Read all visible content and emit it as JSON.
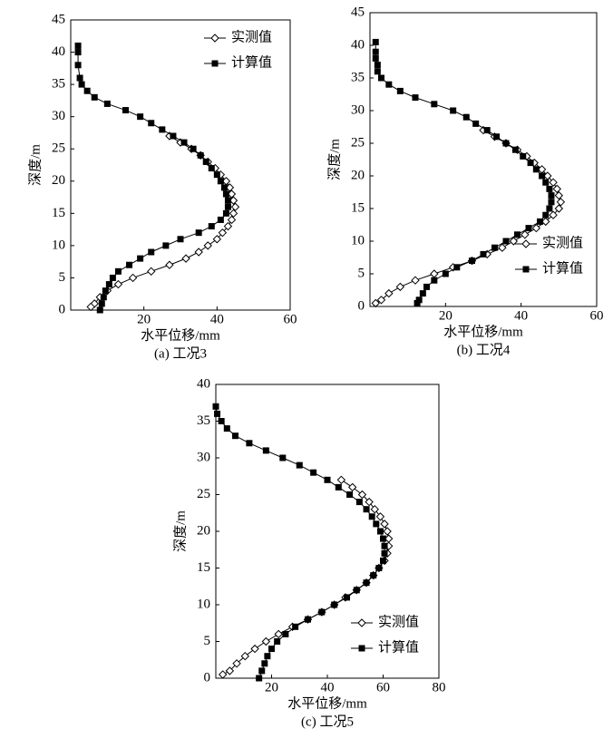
{
  "chart_data": [
    {
      "type": "line",
      "caption": "(a) 工况3",
      "x_label": "水平位移/mm",
      "y_label": "深度/m",
      "xlim": [
        0,
        60
      ],
      "ylim": [
        0,
        45
      ],
      "xticks": [
        20,
        40,
        60
      ],
      "yticks": [
        0,
        5,
        10,
        15,
        20,
        25,
        30,
        35,
        40,
        45
      ],
      "legend": "upper right",
      "series": [
        {
          "name": "实测值",
          "color": "#000000",
          "marker": "diamond-open",
          "x": [
            27,
            30,
            33,
            35.5,
            37.5,
            39.5,
            41,
            42.5,
            43.5,
            44,
            44.5,
            45,
            44.5,
            44,
            43,
            41.5,
            40,
            37.5,
            35,
            31.5,
            27,
            22,
            17,
            13,
            10,
            8,
            6.5,
            5.5
          ],
          "y": [
            27,
            26,
            25,
            24,
            23,
            22,
            21,
            20,
            19,
            18,
            17,
            16,
            15,
            14,
            13,
            12,
            11,
            10,
            9,
            8,
            7,
            6,
            5,
            4,
            3,
            2,
            1,
            0.5
          ]
        },
        {
          "name": "计算值",
          "color": "#000000",
          "marker": "square",
          "x": [
            2,
            2,
            2,
            2.5,
            3,
            4.5,
            6.5,
            10,
            15,
            19,
            22,
            25,
            28,
            31,
            33.5,
            35.5,
            37,
            38.5,
            40,
            41,
            42,
            42.5,
            43,
            43,
            42.5,
            41,
            38.5,
            35,
            30,
            26,
            22,
            19,
            16,
            13,
            11.5,
            10.5,
            9.5,
            9,
            8.5,
            8
          ],
          "y": [
            41,
            40,
            38,
            36,
            35,
            34,
            33,
            32,
            31,
            30,
            29,
            28,
            27,
            26,
            25,
            24,
            23,
            22,
            21,
            20,
            19,
            18,
            17,
            16,
            15,
            14,
            13,
            12,
            11,
            10,
            9,
            8,
            7,
            6,
            5,
            4,
            3,
            2,
            1,
            0
          ]
        }
      ]
    },
    {
      "type": "line",
      "caption": "(b) 工况4",
      "x_label": "水平位移/mm",
      "y_label": "深度/m",
      "xlim": [
        0,
        60
      ],
      "ylim": [
        0,
        45
      ],
      "xticks": [
        20,
        40,
        60
      ],
      "yticks": [
        0,
        5,
        10,
        15,
        20,
        25,
        30,
        35,
        40,
        45
      ],
      "legend": "center right",
      "series": [
        {
          "name": "实测值",
          "color": "#000000",
          "marker": "diamond-open",
          "x": [
            30,
            33,
            36,
            39,
            41.5,
            43.5,
            45.5,
            47,
            48.5,
            49.5,
            50,
            50.5,
            50,
            48.5,
            46.5,
            44,
            41,
            38,
            35,
            31,
            27,
            22,
            17,
            12,
            8,
            5,
            3,
            1.5
          ],
          "y": [
            27,
            26,
            25,
            24,
            23,
            22,
            21,
            20,
            19,
            18,
            17,
            16,
            15,
            14,
            13,
            12,
            11,
            10,
            9,
            8,
            7,
            6,
            5,
            4,
            3,
            2,
            1,
            0.5
          ]
        },
        {
          "name": "计算值",
          "color": "#000000",
          "marker": "square",
          "x": [
            1.5,
            1.5,
            1.5,
            2,
            2,
            3,
            5,
            8,
            12,
            17,
            22,
            25.5,
            28,
            31,
            33.5,
            36,
            38.5,
            40.5,
            42.5,
            44,
            45.5,
            46.5,
            47.5,
            48,
            48,
            47.5,
            46.5,
            45,
            42,
            39,
            36,
            33,
            30,
            27,
            23,
            20,
            17,
            15,
            14,
            13,
            12.5
          ],
          "y": [
            40.5,
            39,
            38,
            37,
            36,
            35,
            34,
            33,
            32,
            31,
            30,
            29,
            28,
            27,
            26,
            25,
            24,
            23,
            22,
            21,
            20,
            19,
            18,
            17,
            16,
            15,
            14,
            13,
            12,
            11,
            10,
            9,
            8,
            7,
            6,
            5,
            4,
            3,
            2,
            1,
            0.5
          ]
        }
      ]
    },
    {
      "type": "line",
      "caption": "(c) 工况5",
      "x_label": "水平位移/mm",
      "y_label": "深度/m",
      "xlim": [
        0,
        80
      ],
      "ylim": [
        0,
        40
      ],
      "xticks": [
        20,
        40,
        60,
        80
      ],
      "yticks": [
        0,
        5,
        10,
        15,
        20,
        25,
        30,
        35,
        40
      ],
      "legend": "lower right",
      "series": [
        {
          "name": "实测值",
          "color": "#000000",
          "marker": "diamond-open",
          "x": [
            45,
            49,
            52.5,
            55,
            57,
            59,
            60.5,
            61.5,
            62,
            62,
            61.5,
            60.5,
            58.5,
            56.5,
            54,
            50.5,
            46.5,
            42.5,
            38,
            33,
            27.5,
            22.5,
            18,
            14,
            10.5,
            7.5,
            5,
            2.5
          ],
          "y": [
            27,
            26,
            25,
            24,
            23,
            22,
            21,
            20,
            19,
            18,
            17,
            16,
            15,
            14,
            13,
            12,
            11,
            10,
            9,
            8,
            7,
            6,
            5,
            4,
            3,
            2,
            1,
            0.5
          ]
        },
        {
          "name": "计算值",
          "color": "#000000",
          "marker": "square",
          "x": [
            0,
            0.5,
            2,
            4,
            7,
            12,
            18,
            24,
            30,
            35,
            40,
            44,
            48,
            51.5,
            54,
            56,
            57.5,
            59,
            60,
            60.5,
            60.5,
            60,
            58.5,
            56.5,
            54,
            50.5,
            47,
            42.5,
            38,
            33,
            28.5,
            25,
            22,
            20,
            18.5,
            17.5,
            16.5,
            15.5
          ],
          "y": [
            37,
            36,
            35,
            34,
            33,
            32,
            31,
            30,
            29,
            28,
            27,
            26,
            25,
            24,
            23,
            22,
            21,
            20,
            19,
            18,
            17,
            16,
            15,
            14,
            13,
            12,
            11,
            10,
            9,
            8,
            7,
            6,
            5,
            4,
            3,
            2,
            1,
            0
          ]
        }
      ]
    }
  ]
}
